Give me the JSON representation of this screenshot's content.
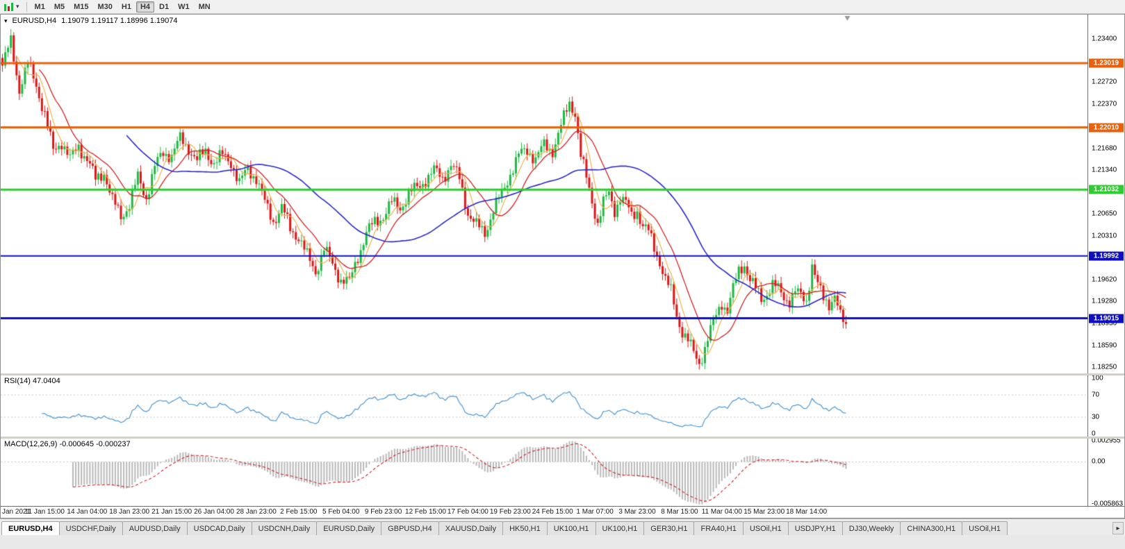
{
  "toolbar": {
    "chart_type_icon": "candlestick-chart-icon",
    "dropdown_caret": "▾",
    "timeframes": [
      {
        "label": "M1",
        "active": false
      },
      {
        "label": "M5",
        "active": false
      },
      {
        "label": "M15",
        "active": false
      },
      {
        "label": "M30",
        "active": false
      },
      {
        "label": "H1",
        "active": false
      },
      {
        "label": "H4",
        "active": true
      },
      {
        "label": "D1",
        "active": false
      },
      {
        "label": "W1",
        "active": false
      },
      {
        "label": "MN",
        "active": false
      }
    ]
  },
  "chart": {
    "symbol": "EURUSD,H4",
    "ohlc_text": "1.19079 1.19117 1.18996 1.19074",
    "dropdown_caret": "▾"
  },
  "main_pane": {
    "scale": {
      "pmax": 1.2378,
      "pmin": 1.1815
    },
    "axis_labels": [
      "1.23400",
      "1.22720",
      "1.22370",
      "1.21680",
      "1.21340",
      "1.20650",
      "1.20310",
      "1.19620",
      "1.19280",
      "1.18930",
      "1.18590",
      "1.18250"
    ],
    "hlines": [
      {
        "price": 1.23019,
        "label": "1.23019",
        "color": "#e8610c",
        "width": 3
      },
      {
        "price": 1.2201,
        "label": "1.22010",
        "color": "#e8610c",
        "width": 3
      },
      {
        "price": 1.21032,
        "label": "1.21032",
        "color": "#2ecc2e",
        "width": 3
      },
      {
        "price": 1.19992,
        "label": "1.19992",
        "color": "#0f0fc0",
        "width": 2
      },
      {
        "price": 1.19015,
        "label": "1.19015",
        "color": "#0f0fc0",
        "width": 3
      }
    ]
  },
  "rsi_pane": {
    "label": "RSI(14) 47.0404",
    "axis_labels": [
      "100",
      "70",
      "30",
      "0"
    ],
    "levels": [
      70,
      30
    ],
    "line_color": "#4a96d2"
  },
  "macd_pane": {
    "label": "MACD(12,26,9) -0.000645 -0.000237",
    "axis_labels": [
      "0.002955",
      "0.00",
      "-0.005863"
    ],
    "max": 0.002955,
    "min": -0.005863,
    "hist_color": "#b8b8b8",
    "signal_color": "#d02020"
  },
  "time_axis": {
    "labels": [
      "Jan 2021",
      "11 Jan 15:00",
      "14 Jan 04:00",
      "18 Jan 23:00",
      "21 Jan 15:00",
      "26 Jan 04:00",
      "28 Jan 23:00",
      "2 Feb 15:00",
      "5 Feb 04:00",
      "9 Feb 23:00",
      "12 Feb 15:00",
      "17 Feb 04:00",
      "19 Feb 23:00",
      "24 Feb 15:00",
      "1 Mar 07:00",
      "3 Mar 23:00",
      "8 Mar 15:00",
      "11 Mar 04:00",
      "15 Mar 23:00",
      "18 Mar 14:00"
    ]
  },
  "tabs": [
    {
      "label": "EURUSD,H4",
      "active": true
    },
    {
      "label": "USDCHF,Daily",
      "active": false
    },
    {
      "label": "AUDUSD,Daily",
      "active": false
    },
    {
      "label": "USDCAD,Daily",
      "active": false
    },
    {
      "label": "USDCNH,Daily",
      "active": false
    },
    {
      "label": "EURUSD,Daily",
      "active": false
    },
    {
      "label": "GBPUSD,H4",
      "active": false
    },
    {
      "label": "XAUUSD,Daily",
      "active": false
    },
    {
      "label": "HK50,H1",
      "active": false
    },
    {
      "label": "UK100,H1",
      "active": false
    },
    {
      "label": "UK100,H1",
      "active": false
    },
    {
      "label": "GER30,H1",
      "active": false
    },
    {
      "label": "FRA40,H1",
      "active": false
    },
    {
      "label": "USOil,H1",
      "active": false
    },
    {
      "label": "USDJPY,H1",
      "active": false
    },
    {
      "label": "DJ30,Weekly",
      "active": false
    },
    {
      "label": "CHINA300,H1",
      "active": false
    },
    {
      "label": "USOil,H1",
      "active": false
    }
  ],
  "tab_scroll_right": "▸",
  "chart_data": {
    "type": "candlestick",
    "symbol": "EURUSD",
    "timeframe": "H4",
    "title": "EURUSD,H4",
    "ohlc_current": {
      "open": 1.19079,
      "high": 1.19117,
      "low": 1.18996,
      "close": 1.19074
    },
    "x_range": [
      "5 Jan 2021",
      "18 Mar 2021 14:00"
    ],
    "y_range": [
      1.1815,
      1.2378
    ],
    "candle_count": 300,
    "colors": {
      "up": "#1cb841",
      "down": "#dd1515",
      "ma_fast": "#edb24a",
      "ma_mid": "#d02020",
      "ma_slow": "#2828c8"
    },
    "overlays": [
      {
        "name": "MA fast",
        "color": "#edb24a",
        "period": 6
      },
      {
        "name": "MA mid",
        "color": "#d02020",
        "period": 14
      },
      {
        "name": "MA slow",
        "color": "#2828c8",
        "period": 45
      }
    ],
    "horizontal_levels": [
      1.23019,
      1.2201,
      1.21032,
      1.19992,
      1.19015
    ],
    "indicators": [
      {
        "name": "RSI",
        "period": 14,
        "current_value": 47.0404,
        "range": [
          0,
          100
        ],
        "levels": [
          30,
          70
        ]
      },
      {
        "name": "MACD",
        "params": [
          12,
          26,
          9
        ],
        "current_values": [
          -0.000645,
          -0.000237
        ],
        "axis_max": 0.002955,
        "axis_min": -0.005863
      }
    ],
    "price_anchors": [
      [
        0,
        1.2298
      ],
      [
        3,
        1.2335
      ],
      [
        6,
        1.2262
      ],
      [
        9,
        1.23
      ],
      [
        12,
        1.2268
      ],
      [
        15,
        1.2222
      ],
      [
        18,
        1.2163
      ],
      [
        21,
        1.218
      ],
      [
        24,
        1.215
      ],
      [
        27,
        1.2172
      ],
      [
        30,
        1.2152
      ],
      [
        33,
        1.2118
      ],
      [
        36,
        1.2132
      ],
      [
        39,
        1.2085
      ],
      [
        42,
        1.2062
      ],
      [
        45,
        1.208
      ],
      [
        48,
        1.2122
      ],
      [
        51,
        1.2092
      ],
      [
        54,
        1.2138
      ],
      [
        57,
        1.2162
      ],
      [
        60,
        1.2158
      ],
      [
        63,
        1.2182
      ],
      [
        66,
        1.217
      ],
      [
        69,
        1.2148
      ],
      [
        72,
        1.2164
      ],
      [
        75,
        1.2146
      ],
      [
        78,
        1.2156
      ],
      [
        81,
        1.2148
      ],
      [
        84,
        1.2112
      ],
      [
        87,
        1.2136
      ],
      [
        90,
        1.2122
      ],
      [
        93,
        1.2082
      ],
      [
        96,
        1.2055
      ],
      [
        99,
        1.2075
      ],
      [
        102,
        1.2042
      ],
      [
        105,
        1.203
      ],
      [
        108,
        1.1998
      ],
      [
        111,
        1.1976
      ],
      [
        114,
        1.201
      ],
      [
        117,
        1.1986
      ],
      [
        120,
        1.1963
      ],
      [
        123,
        1.1957
      ],
      [
        126,
        1.2
      ],
      [
        129,
        1.2035
      ],
      [
        132,
        1.2052
      ],
      [
        135,
        1.2063
      ],
      [
        138,
        1.2082
      ],
      [
        141,
        1.2076
      ],
      [
        144,
        1.2096
      ],
      [
        147,
        1.2106
      ],
      [
        150,
        1.212
      ],
      [
        153,
        1.2132
      ],
      [
        156,
        1.2123
      ],
      [
        159,
        1.2142
      ],
      [
        162,
        1.212
      ],
      [
        165,
        1.2068
      ],
      [
        168,
        1.2046
      ],
      [
        171,
        1.2036
      ],
      [
        174,
        1.2072
      ],
      [
        177,
        1.2096
      ],
      [
        180,
        1.213
      ],
      [
        183,
        1.2156
      ],
      [
        186,
        1.2166
      ],
      [
        189,
        1.2152
      ],
      [
        192,
        1.2172
      ],
      [
        195,
        1.2166
      ],
      [
        198,
        1.2202
      ],
      [
        201,
        1.224
      ],
      [
        203,
        1.2226
      ],
      [
        205,
        1.2156
      ],
      [
        207,
        1.212
      ],
      [
        209,
        1.2086
      ],
      [
        211,
        1.2052
      ],
      [
        213,
        1.2082
      ],
      [
        215,
        1.2096
      ],
      [
        217,
        1.2072
      ],
      [
        219,
        1.2092
      ],
      [
        221,
        1.208
      ],
      [
        223,
        1.2062
      ],
      [
        225,
        1.2072
      ],
      [
        227,
        1.2046
      ],
      [
        229,
        1.2036
      ],
      [
        231,
        1.2012
      ],
      [
        233,
        1.1992
      ],
      [
        235,
        1.1962
      ],
      [
        237,
        1.1942
      ],
      [
        239,
        1.1906
      ],
      [
        241,
        1.1882
      ],
      [
        243,
        1.1866
      ],
      [
        245,
        1.1846
      ],
      [
        247,
        1.1832
      ],
      [
        249,
        1.1856
      ],
      [
        251,
        1.1882
      ],
      [
        253,
        1.1906
      ],
      [
        255,
        1.1928
      ],
      [
        257,
        1.1914
      ],
      [
        259,
        1.1946
      ],
      [
        261,
        1.1976
      ],
      [
        263,
        1.1988
      ],
      [
        265,
        1.1962
      ],
      [
        267,
        1.1946
      ],
      [
        269,
        1.1932
      ],
      [
        271,
        1.1942
      ],
      [
        273,
        1.1953
      ],
      [
        275,
        1.1946
      ],
      [
        277,
        1.1936
      ],
      [
        279,
        1.193
      ],
      [
        281,
        1.1942
      ],
      [
        283,
        1.1936
      ],
      [
        285,
        1.193
      ],
      [
        287,
        1.1986
      ],
      [
        289,
        1.1952
      ],
      [
        291,
        1.1932
      ],
      [
        293,
        1.1926
      ],
      [
        295,
        1.1938
      ],
      [
        297,
        1.1902
      ],
      [
        299,
        1.1888
      ]
    ]
  }
}
